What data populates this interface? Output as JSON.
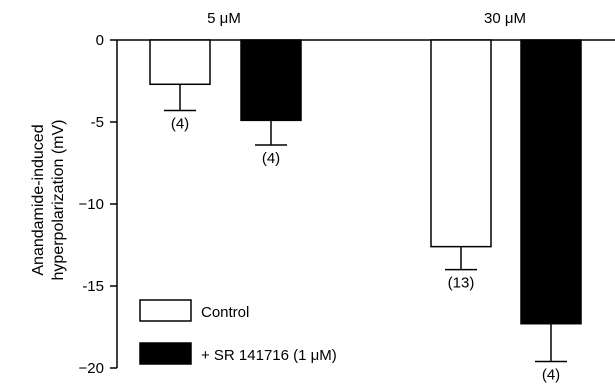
{
  "chart_data": {
    "type": "bar",
    "title": "",
    "xlabel": "",
    "ylabel": [
      "Anandamide-induced",
      "hyperpolarization (mV)"
    ],
    "ylim": [
      -20,
      0
    ],
    "yticks": [
      {
        "value": 0,
        "label": "0"
      },
      {
        "value": -5,
        "label": "-5"
      },
      {
        "value": -10,
        "label": "−10"
      },
      {
        "value": -15,
        "label": "-15"
      },
      {
        "value": -20,
        "label": "−20"
      }
    ],
    "categories": [
      "5 μM",
      "30 μM"
    ],
    "series": [
      {
        "name": "Control",
        "fill": "#ffffff",
        "values": [
          -2.7,
          -12.6
        ],
        "errors": [
          1.6,
          1.4
        ],
        "n": [
          "(4)",
          "(13)"
        ]
      },
      {
        "name": "+ SR 141716 (1 μM)",
        "fill": "#000000",
        "values": [
          -4.9,
          -17.3
        ],
        "errors": [
          1.5,
          2.3
        ],
        "n": [
          "(4)",
          "(4)"
        ]
      }
    ],
    "grid": false,
    "legend": "bottom-left"
  }
}
